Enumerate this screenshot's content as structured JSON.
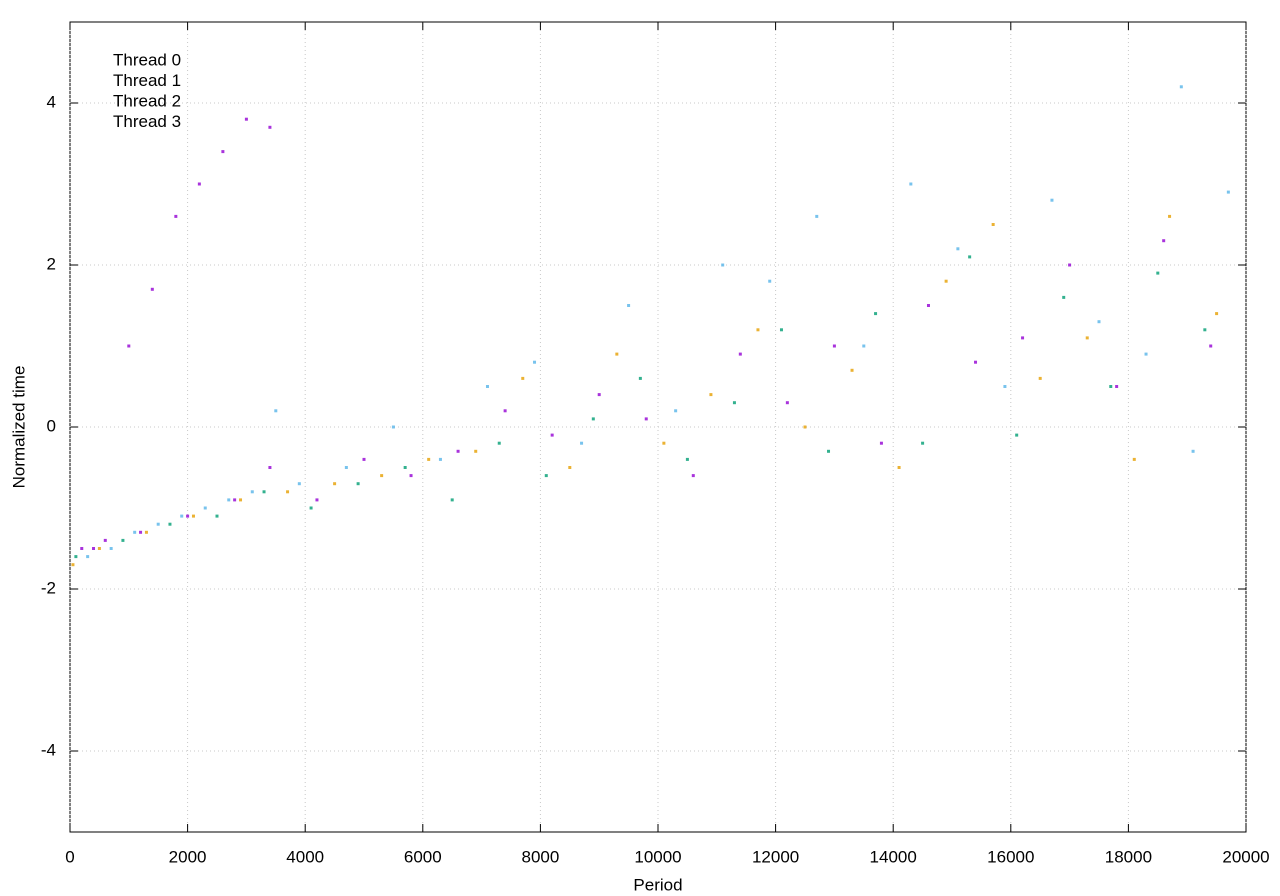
{
  "chart_data": {
    "type": "scatter",
    "xlabel": "Period",
    "ylabel": "Normalized time",
    "xlim": [
      0,
      20000
    ],
    "xticks": [
      0,
      2000,
      4000,
      6000,
      8000,
      10000,
      12000,
      14000,
      16000,
      18000,
      20000
    ],
    "ylim": [
      -5,
      5
    ],
    "yticks": [
      -4,
      -2,
      0,
      2,
      4
    ],
    "grid": true,
    "legend": "top-left",
    "series": [
      {
        "name": "Thread 0",
        "color": "#9400d3",
        "x": [
          200,
          600,
          1000,
          1400,
          1800,
          2200,
          2600,
          3000,
          3400,
          400,
          1200,
          2000,
          2800,
          3400,
          4200,
          5000,
          5800,
          6600,
          7400,
          8200,
          9000,
          9800,
          10600,
          11400,
          12200,
          13000,
          13800,
          14600,
          15400,
          16200,
          17000,
          17800,
          18600,
          19400
        ],
        "values": [
          -1.5,
          -1.4,
          1.0,
          1.7,
          2.6,
          3.0,
          3.4,
          3.8,
          3.7,
          -1.5,
          -1.3,
          -1.1,
          -0.9,
          -0.5,
          -0.9,
          -0.4,
          -0.6,
          -0.3,
          0.2,
          -0.1,
          0.4,
          0.1,
          -0.6,
          0.9,
          0.3,
          1.0,
          -0.2,
          1.5,
          0.8,
          1.1,
          2.0,
          0.5,
          2.3,
          1.0
        ]
      },
      {
        "name": "Thread 1",
        "color": "#009e73",
        "x": [
          100,
          900,
          1700,
          2500,
          3300,
          4100,
          4900,
          5700,
          6500,
          7300,
          8100,
          8900,
          9700,
          10500,
          11300,
          12100,
          12900,
          13700,
          14500,
          15300,
          16100,
          16900,
          17700,
          18500,
          19300
        ],
        "values": [
          -1.6,
          -1.4,
          -1.2,
          -1.1,
          -0.8,
          -1.0,
          -0.7,
          -0.5,
          -0.9,
          -0.2,
          -0.6,
          0.1,
          0.6,
          -0.4,
          0.3,
          1.2,
          -0.3,
          1.4,
          -0.2,
          2.1,
          -0.1,
          1.6,
          0.5,
          1.9,
          1.2
        ]
      },
      {
        "name": "Thread 2",
        "color": "#56b4e9",
        "x": [
          300,
          700,
          1100,
          1500,
          1900,
          2300,
          2700,
          3100,
          3500,
          3900,
          4700,
          5500,
          6300,
          7100,
          7900,
          8700,
          9500,
          10300,
          11100,
          11900,
          12700,
          13500,
          14300,
          15100,
          15900,
          16700,
          17500,
          18300,
          18900,
          19100,
          19700
        ],
        "values": [
          -1.6,
          -1.5,
          -1.3,
          -1.2,
          -1.1,
          -1.0,
          -0.9,
          -0.8,
          0.2,
          -0.7,
          -0.5,
          0.0,
          -0.4,
          0.5,
          0.8,
          -0.2,
          1.5,
          0.2,
          2.0,
          1.8,
          2.6,
          1.0,
          3.0,
          2.2,
          0.5,
          2.8,
          1.3,
          0.9,
          4.2,
          -0.3,
          2.9
        ]
      },
      {
        "name": "Thread 3",
        "color": "#e69f00",
        "x": [
          50,
          500,
          1300,
          2100,
          2900,
          3700,
          4500,
          5300,
          6100,
          6900,
          7700,
          8500,
          9300,
          10100,
          10900,
          11700,
          12500,
          13300,
          14100,
          14900,
          15700,
          16500,
          17300,
          18100,
          18700,
          19500
        ],
        "values": [
          -1.7,
          -1.5,
          -1.3,
          -1.1,
          -0.9,
          -0.8,
          -0.7,
          -0.6,
          -0.4,
          -0.3,
          0.6,
          -0.5,
          0.9,
          -0.2,
          0.4,
          1.2,
          0.0,
          0.7,
          -0.5,
          1.8,
          2.5,
          0.6,
          1.1,
          -0.4,
          2.6,
          1.4
        ]
      }
    ]
  }
}
